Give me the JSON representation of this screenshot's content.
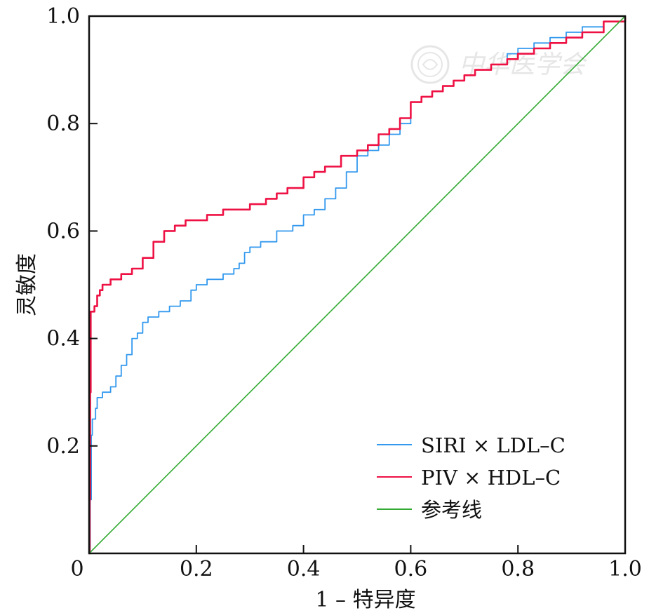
{
  "chart_data": {
    "type": "line",
    "xlabel": "1 – 特异度",
    "ylabel": "灵敏度",
    "xlim": [
      0,
      1
    ],
    "ylim": [
      0,
      1
    ],
    "x_ticks": [
      {
        "value": 0,
        "label": "0"
      },
      {
        "value": 0.2,
        "label": "0.2"
      },
      {
        "value": 0.4,
        "label": "0.4"
      },
      {
        "value": 0.6,
        "label": "0.6"
      },
      {
        "value": 0.8,
        "label": "0.8"
      },
      {
        "value": 1,
        "label": "1.0"
      }
    ],
    "y_ticks": [
      {
        "value": 0.2,
        "label": "0.2"
      },
      {
        "value": 0.4,
        "label": "0.4"
      },
      {
        "value": 0.6,
        "label": "0.6"
      },
      {
        "value": 0.8,
        "label": "0.8"
      },
      {
        "value": 1,
        "label": "1.0"
      }
    ],
    "grid": false,
    "legend_position": "bottom-right",
    "series": [
      {
        "name": "SIRI × LDL–C",
        "color": "#3399ee",
        "points": [
          [
            0,
            0
          ],
          [
            0.002,
            0.1
          ],
          [
            0.004,
            0.22
          ],
          [
            0.006,
            0.25
          ],
          [
            0.012,
            0.27
          ],
          [
            0.015,
            0.29
          ],
          [
            0.025,
            0.3
          ],
          [
            0.04,
            0.31
          ],
          [
            0.05,
            0.33
          ],
          [
            0.06,
            0.35
          ],
          [
            0.07,
            0.37
          ],
          [
            0.08,
            0.4
          ],
          [
            0.09,
            0.41
          ],
          [
            0.1,
            0.43
          ],
          [
            0.11,
            0.44
          ],
          [
            0.13,
            0.45
          ],
          [
            0.15,
            0.46
          ],
          [
            0.17,
            0.47
          ],
          [
            0.19,
            0.49
          ],
          [
            0.2,
            0.5
          ],
          [
            0.22,
            0.51
          ],
          [
            0.25,
            0.52
          ],
          [
            0.27,
            0.53
          ],
          [
            0.28,
            0.54
          ],
          [
            0.29,
            0.56
          ],
          [
            0.3,
            0.57
          ],
          [
            0.32,
            0.58
          ],
          [
            0.35,
            0.6
          ],
          [
            0.38,
            0.61
          ],
          [
            0.4,
            0.63
          ],
          [
            0.42,
            0.64
          ],
          [
            0.44,
            0.66
          ],
          [
            0.46,
            0.68
          ],
          [
            0.48,
            0.71
          ],
          [
            0.5,
            0.74
          ],
          [
            0.52,
            0.75
          ],
          [
            0.54,
            0.76
          ],
          [
            0.56,
            0.78
          ],
          [
            0.58,
            0.8
          ],
          [
            0.6,
            0.84
          ],
          [
            0.62,
            0.85
          ],
          [
            0.64,
            0.86
          ],
          [
            0.66,
            0.87
          ],
          [
            0.68,
            0.88
          ],
          [
            0.7,
            0.89
          ],
          [
            0.72,
            0.9
          ],
          [
            0.75,
            0.91
          ],
          [
            0.78,
            0.93
          ],
          [
            0.8,
            0.94
          ],
          [
            0.83,
            0.95
          ],
          [
            0.86,
            0.96
          ],
          [
            0.89,
            0.97
          ],
          [
            0.92,
            0.98
          ],
          [
            0.96,
            0.99
          ],
          [
            1,
            1
          ]
        ]
      },
      {
        "name": "PIV × HDL–C",
        "color": "#ee1144",
        "points": [
          [
            0,
            0
          ],
          [
            0.001,
            0.1
          ],
          [
            0.002,
            0.3
          ],
          [
            0.003,
            0.45
          ],
          [
            0.01,
            0.46
          ],
          [
            0.015,
            0.48
          ],
          [
            0.02,
            0.49
          ],
          [
            0.025,
            0.5
          ],
          [
            0.04,
            0.51
          ],
          [
            0.06,
            0.52
          ],
          [
            0.08,
            0.53
          ],
          [
            0.1,
            0.55
          ],
          [
            0.12,
            0.58
          ],
          [
            0.14,
            0.6
          ],
          [
            0.16,
            0.61
          ],
          [
            0.18,
            0.62
          ],
          [
            0.2,
            0.62
          ],
          [
            0.22,
            0.63
          ],
          [
            0.25,
            0.64
          ],
          [
            0.28,
            0.64
          ],
          [
            0.3,
            0.65
          ],
          [
            0.33,
            0.66
          ],
          [
            0.35,
            0.67
          ],
          [
            0.37,
            0.68
          ],
          [
            0.4,
            0.7
          ],
          [
            0.42,
            0.71
          ],
          [
            0.44,
            0.72
          ],
          [
            0.47,
            0.74
          ],
          [
            0.5,
            0.75
          ],
          [
            0.52,
            0.76
          ],
          [
            0.54,
            0.78
          ],
          [
            0.56,
            0.79
          ],
          [
            0.58,
            0.81
          ],
          [
            0.6,
            0.84
          ],
          [
            0.62,
            0.85
          ],
          [
            0.64,
            0.86
          ],
          [
            0.66,
            0.87
          ],
          [
            0.68,
            0.88
          ],
          [
            0.7,
            0.89
          ],
          [
            0.72,
            0.9
          ],
          [
            0.75,
            0.91
          ],
          [
            0.78,
            0.92
          ],
          [
            0.8,
            0.93
          ],
          [
            0.83,
            0.94
          ],
          [
            0.86,
            0.95
          ],
          [
            0.89,
            0.96
          ],
          [
            0.92,
            0.97
          ],
          [
            0.96,
            0.99
          ],
          [
            1,
            1
          ]
        ]
      },
      {
        "name": "参考线",
        "color": "#33aa33",
        "points": [
          [
            0,
            0
          ],
          [
            1,
            1
          ]
        ]
      }
    ]
  },
  "watermark": {
    "seal_icon": "seal-emblem-icon",
    "text": "中华医学会"
  }
}
